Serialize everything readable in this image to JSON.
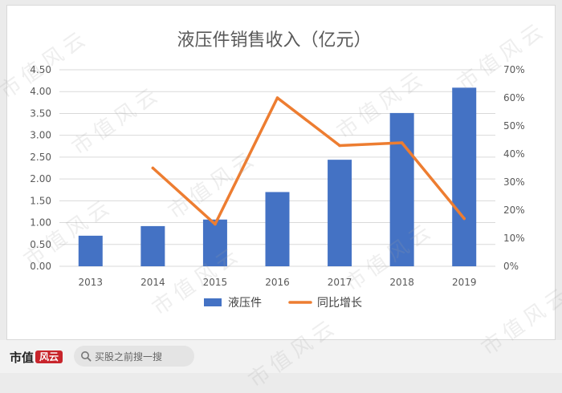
{
  "chart_data": {
    "type": "bar+line",
    "title": "液压件销售收入（亿元）",
    "categories": [
      "2013",
      "2014",
      "2015",
      "2016",
      "2017",
      "2018",
      "2019"
    ],
    "series": [
      {
        "name": "液压件",
        "type": "bar",
        "axis": "left",
        "color": "#4472c4",
        "values": [
          0.7,
          0.92,
          1.07,
          1.7,
          2.44,
          3.51,
          4.09
        ]
      },
      {
        "name": "同比增长",
        "type": "line",
        "axis": "right",
        "color": "#ed7d31",
        "values": [
          null,
          0.35,
          0.15,
          0.6,
          0.43,
          0.44,
          0.17
        ]
      }
    ],
    "y_left": {
      "ylim": [
        0,
        4.5
      ],
      "ticks": [
        "0.00",
        "0.50",
        "1.00",
        "1.50",
        "2.00",
        "2.50",
        "3.00",
        "3.50",
        "4.00",
        "4.50"
      ]
    },
    "y_right": {
      "ylim": [
        0,
        0.7
      ],
      "ticks": [
        "0%",
        "10%",
        "20%",
        "30%",
        "40%",
        "50%",
        "60%",
        "70%"
      ]
    },
    "grid": true,
    "legend": "bottom"
  },
  "watermark": "市值风云",
  "footer": {
    "brand": "市值",
    "brand_mark": "风云",
    "search_placeholder": "买股之前搜一搜"
  }
}
